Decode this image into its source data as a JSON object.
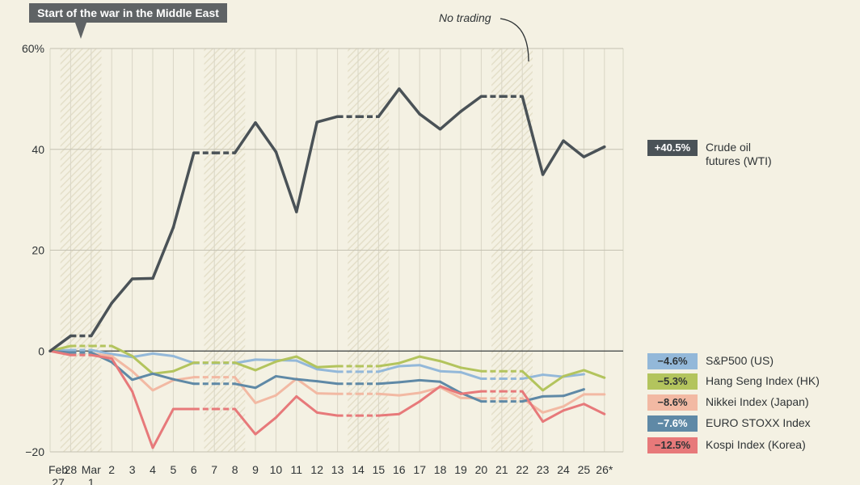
{
  "callout": {
    "text": "Start of the war in the Middle East"
  },
  "note": {
    "text": "No trading"
  },
  "chart_data": {
    "type": "line",
    "x": [
      "Feb 27",
      "28",
      "Mar 1",
      "2",
      "3",
      "4",
      "5",
      "6",
      "7",
      "8",
      "9",
      "10",
      "11",
      "12",
      "13",
      "14",
      "15",
      "16",
      "17",
      "18",
      "19",
      "20",
      "21",
      "22",
      "23",
      "24",
      "25",
      "26*"
    ],
    "ylim": [
      -20,
      60
    ],
    "yticks": [
      60,
      40,
      20,
      0,
      -20
    ],
    "ytick_labels": [
      "60%",
      "40",
      "20",
      "0",
      "−20"
    ],
    "grid": true,
    "no_trading_days": [
      "28",
      "Mar 1",
      "7",
      "8",
      "14",
      "15",
      "21",
      "22"
    ],
    "series": [
      {
        "name": "Crude oil futures (WTI)",
        "label_lines": [
          "Crude oil",
          "futures (WTI)"
        ],
        "final_label": "+40.5%",
        "color": "#4a5257",
        "text_color": "#ffffff",
        "values": [
          0,
          3,
          3,
          9.5,
          14.3,
          14.4,
          24.5,
          39.3,
          39.3,
          39.3,
          45.3,
          39.5,
          27.6,
          45.4,
          46.5,
          46.5,
          46.5,
          52,
          47,
          44,
          47.5,
          50.5,
          50.5,
          50.5,
          35,
          41.7,
          38.5,
          40.5
        ]
      },
      {
        "name": "S&P500 (US)",
        "label_lines": [
          "S&P500 (US)"
        ],
        "final_label": "−4.6%",
        "color": "#93b8d9",
        "text_color": "#2f3436",
        "values": [
          0,
          0.2,
          0.2,
          -0.6,
          -1.2,
          -0.5,
          -1,
          -2.4,
          -2.4,
          -2.4,
          -1.7,
          -1.8,
          -1.9,
          -3.6,
          -4.1,
          -4.1,
          -4.1,
          -3,
          -2.8,
          -4,
          -4.2,
          -5.5,
          -5.5,
          -5.5,
          -4.7,
          -5.1,
          -4.6,
          null
        ]
      },
      {
        "name": "Hang Seng Index (HK)",
        "label_lines": [
          "Hang Seng Index (HK)"
        ],
        "final_label": "−5.3%",
        "color": "#b3c45d",
        "text_color": "#2f3436",
        "values": [
          0,
          1,
          1,
          1,
          -1,
          -4.5,
          -4,
          -2.3,
          -2.3,
          -2.3,
          -3.8,
          -2.1,
          -1.1,
          -3.2,
          -3,
          -3,
          -3,
          -2.4,
          -1.1,
          -2,
          -3.3,
          -4,
          -4,
          -4,
          -7.8,
          -5,
          -3.8,
          -5.3
        ]
      },
      {
        "name": "Nikkei Index (Japan)",
        "label_lines": [
          "Nikkei Index (Japan)"
        ],
        "final_label": "−8.6%",
        "color": "#f2b9a3",
        "text_color": "#2f3436",
        "values": [
          0,
          -0.5,
          -0.5,
          -1,
          -4,
          -7.8,
          -5.8,
          -5.2,
          -5.2,
          -5.2,
          -10.3,
          -8.8,
          -5.5,
          -8.4,
          -8.5,
          -8.5,
          -8.5,
          -8.8,
          -8.3,
          -7.2,
          -9.3,
          -9.4,
          -9.4,
          -9.4,
          -12.2,
          -11,
          -8.6,
          -8.6
        ]
      },
      {
        "name": "EURO STOXX Index",
        "label_lines": [
          "EURO STOXX Index"
        ],
        "final_label": "−7.6%",
        "color": "#5f89a6",
        "text_color": "#ffffff",
        "values": [
          0,
          -0.3,
          -0.3,
          -2.2,
          -5.7,
          -4.5,
          -5.6,
          -6.5,
          -6.5,
          -6.5,
          -7.3,
          -5,
          -5.6,
          -6,
          -6.5,
          -6.5,
          -6.5,
          -6.2,
          -5.8,
          -6.1,
          -8.3,
          -10,
          -10,
          -10,
          -9,
          -8.9,
          -7.6,
          null
        ]
      },
      {
        "name": "Kospi Index (Korea)",
        "label_lines": [
          "Kospi Index (Korea)"
        ],
        "final_label": "−12.5%",
        "color": "#e7797a",
        "text_color": "#2f3436",
        "values": [
          0,
          -0.8,
          -0.8,
          -1.5,
          -8,
          -19.2,
          -11.5,
          -11.5,
          -11.5,
          -11.5,
          -16.5,
          -13.2,
          -9,
          -12.2,
          -12.8,
          -12.8,
          -12.8,
          -12.5,
          -10,
          -7,
          -8.5,
          -8,
          -8,
          -8,
          -14,
          -11.8,
          -10.5,
          -12.5
        ]
      }
    ]
  }
}
